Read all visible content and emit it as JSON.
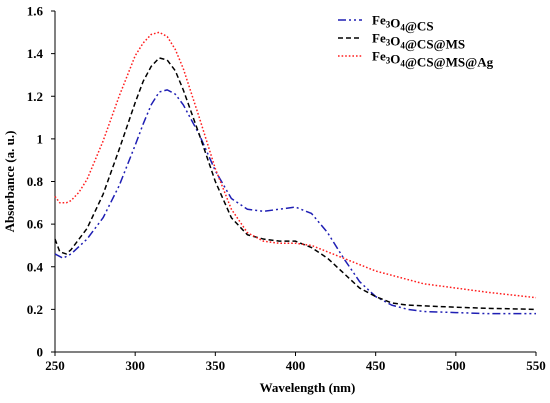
{
  "chart_data": {
    "type": "line",
    "title": "",
    "xlabel": "Wavelength (nm)",
    "ylabel": "Absorbance (a. u.)",
    "xlim": [
      250,
      550
    ],
    "ylim": [
      0,
      1.6
    ],
    "x_ticks": [
      250,
      300,
      350,
      400,
      450,
      500,
      550
    ],
    "y_ticks": [
      0,
      0.2,
      0.4,
      0.6,
      0.8,
      1,
      1.2,
      1.4,
      1.6
    ],
    "x_tick_labels": [
      "250",
      "300",
      "350",
      "400",
      "450",
      "500",
      "550"
    ],
    "y_tick_labels": [
      "0",
      "0.2",
      "0.4",
      "0.6",
      "0.8",
      "1",
      "1.2",
      "1.4",
      "1.6"
    ],
    "grid": false,
    "legend_position": "top-right",
    "series": [
      {
        "name": "Fe3O4@CS",
        "legend_parts": [
          [
            "Fe",
            ""
          ],
          [
            "3",
            "sub"
          ],
          [
            "O",
            ""
          ],
          [
            "4",
            "sub"
          ],
          [
            "@CS",
            ""
          ]
        ],
        "color": "#1f1fb4",
        "dash": "dashdotdot",
        "x": [
          250,
          255,
          260,
          270,
          280,
          290,
          300,
          305,
          310,
          315,
          320,
          325,
          330,
          340,
          350,
          360,
          370,
          380,
          390,
          400,
          410,
          420,
          430,
          440,
          450,
          460,
          470,
          480,
          500,
          520,
          550
        ],
        "y": [
          0.46,
          0.44,
          0.46,
          0.53,
          0.63,
          0.78,
          0.97,
          1.07,
          1.16,
          1.22,
          1.23,
          1.21,
          1.16,
          1.02,
          0.85,
          0.72,
          0.67,
          0.66,
          0.67,
          0.68,
          0.65,
          0.56,
          0.44,
          0.33,
          0.26,
          0.22,
          0.2,
          0.19,
          0.185,
          0.18,
          0.18
        ]
      },
      {
        "name": "Fe3O4@CS@MS",
        "legend_parts": [
          [
            "Fe",
            ""
          ],
          [
            "3",
            "sub"
          ],
          [
            "O",
            ""
          ],
          [
            "4",
            "sub"
          ],
          [
            "@CS@MS",
            ""
          ]
        ],
        "color": "#000000",
        "dash": "dash",
        "x": [
          250,
          253,
          257,
          260,
          270,
          280,
          290,
          300,
          305,
          310,
          315,
          320,
          325,
          330,
          340,
          350,
          360,
          370,
          380,
          390,
          400,
          410,
          420,
          430,
          440,
          450,
          460,
          470,
          500,
          520,
          550
        ],
        "y": [
          0.53,
          0.47,
          0.46,
          0.48,
          0.58,
          0.74,
          0.95,
          1.17,
          1.27,
          1.34,
          1.38,
          1.37,
          1.32,
          1.23,
          1.02,
          0.8,
          0.63,
          0.55,
          0.53,
          0.52,
          0.52,
          0.49,
          0.44,
          0.37,
          0.3,
          0.26,
          0.23,
          0.22,
          0.21,
          0.205,
          0.2
        ]
      },
      {
        "name": "Fe3O4@CS@MS@Ag",
        "legend_parts": [
          [
            "Fe",
            ""
          ],
          [
            "3",
            "sub"
          ],
          [
            "O",
            ""
          ],
          [
            "4",
            "sub"
          ],
          [
            "@CS@MS@Ag",
            ""
          ]
        ],
        "color": "#ff1f1f",
        "dash": "dot",
        "x": [
          250,
          253,
          257,
          260,
          265,
          270,
          280,
          290,
          300,
          305,
          310,
          315,
          320,
          325,
          330,
          340,
          350,
          360,
          370,
          380,
          390,
          400,
          410,
          420,
          430,
          440,
          450,
          460,
          470,
          480,
          500,
          520,
          550
        ],
        "y": [
          0.73,
          0.7,
          0.7,
          0.71,
          0.75,
          0.81,
          0.99,
          1.2,
          1.39,
          1.45,
          1.49,
          1.5,
          1.48,
          1.42,
          1.33,
          1.1,
          0.86,
          0.67,
          0.56,
          0.52,
          0.51,
          0.51,
          0.5,
          0.47,
          0.44,
          0.41,
          0.38,
          0.36,
          0.34,
          0.32,
          0.3,
          0.28,
          0.255
        ]
      }
    ]
  }
}
